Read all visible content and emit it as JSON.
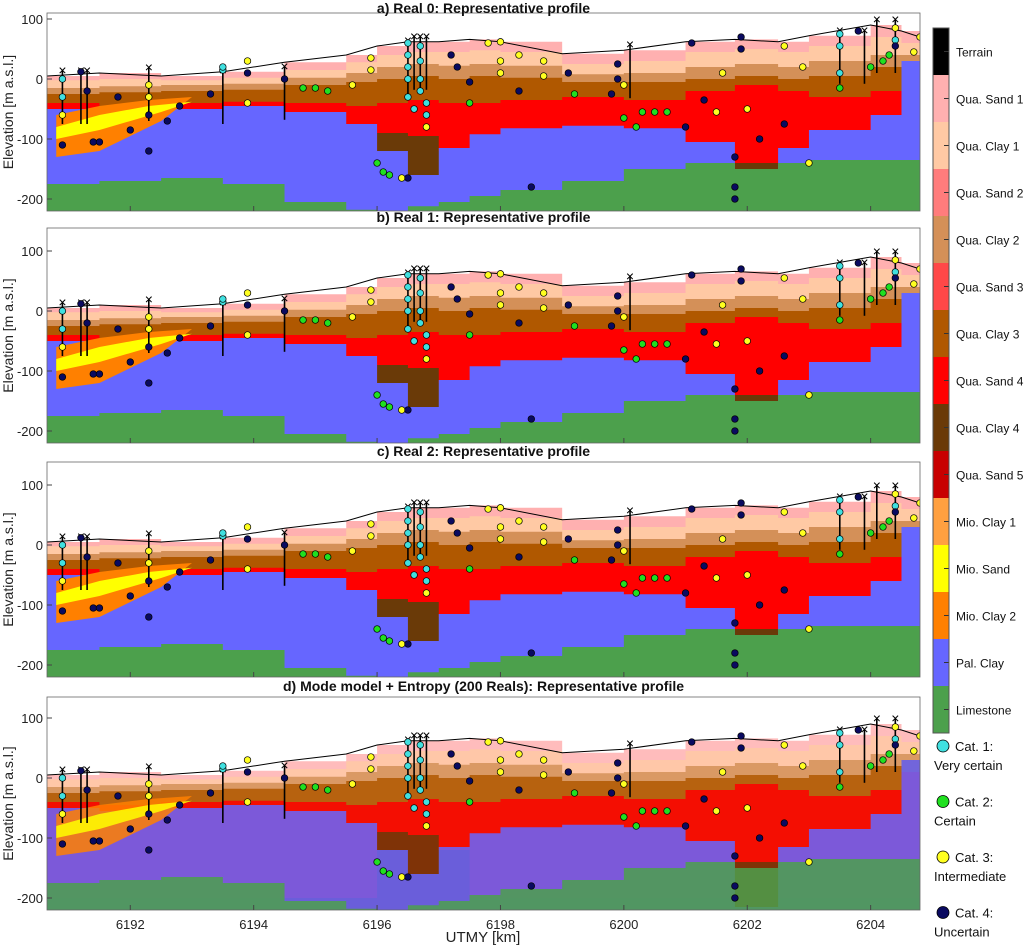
{
  "chart_data": {
    "type": "area",
    "xlabel": "UTMY [km]",
    "ylabel": "Elevation [m a.s.l.]",
    "xlim": [
      6190.65,
      6204.8
    ],
    "ylim": [
      -220,
      100
    ],
    "xticks": [
      6192,
      6194,
      6196,
      6198,
      6200,
      6202,
      6204
    ],
    "yticks": [
      100,
      0,
      -100,
      -200
    ],
    "panels": [
      {
        "title": "a) Real 0: Representative profile"
      },
      {
        "title": "b) Real 1: Representative profile"
      },
      {
        "title": "c) Real 2: Representative profile"
      },
      {
        "title": "d) Mode model + Entropy (200 Reals): Representative profile"
      }
    ],
    "profile_x": [
      6190.65,
      6191.5,
      6192.5,
      6193.5,
      6194.5,
      6195.5,
      6196,
      6196.5,
      6197,
      6197.5,
      6198,
      6199,
      6200,
      6201,
      6201.8,
      6202.5,
      6203,
      6204,
      6204.5,
      6204.8
    ],
    "surface": [
      5,
      10,
      5,
      12,
      28,
      40,
      55,
      62,
      62,
      66,
      62,
      42,
      48,
      62,
      66,
      62,
      72,
      90,
      80,
      70
    ],
    "clay1_top": [
      -2,
      0,
      -2,
      2,
      15,
      28,
      40,
      45,
      45,
      48,
      45,
      25,
      30,
      45,
      50,
      45,
      55,
      70,
      60,
      55
    ],
    "clay2_top": [
      -15,
      -12,
      -10,
      -8,
      2,
      10,
      20,
      25,
      22,
      25,
      22,
      8,
      10,
      20,
      25,
      20,
      30,
      40,
      40,
      40
    ],
    "clay3_top": [
      -25,
      -22,
      -20,
      -18,
      -10,
      -5,
      0,
      5,
      0,
      5,
      2,
      -5,
      -5,
      0,
      5,
      0,
      5,
      20,
      30,
      35
    ],
    "sand4_top": [
      -40,
      -45,
      -40,
      -38,
      -40,
      -45,
      -40,
      -35,
      -40,
      -40,
      -35,
      -30,
      -35,
      -20,
      -10,
      -20,
      -30,
      -20,
      10,
      30
    ],
    "clay4_top": [
      -200,
      -200,
      -200,
      -200,
      -200,
      -200,
      -90,
      -95,
      -120,
      -200,
      -200,
      -200,
      -200,
      -200,
      -140,
      -200,
      -200,
      -200,
      -200,
      -200
    ],
    "pal_top": [
      -50,
      -55,
      -50,
      -45,
      -55,
      -75,
      -120,
      -160,
      -115,
      -92,
      -82,
      -78,
      -82,
      -105,
      -215,
      -115,
      -85,
      -60,
      30,
      50
    ],
    "lime_top": [
      -175,
      -170,
      -165,
      -175,
      -205,
      -218,
      -220,
      -212,
      -205,
      -195,
      -185,
      -170,
      -150,
      -140,
      -150,
      -140,
      -135,
      -135,
      -135,
      -135
    ],
    "mio_lens": {
      "x": [
        6190.8,
        6191.5,
        6192.3,
        6193.0,
        6192.5,
        6191.5,
        6190.8
      ],
      "clay_top": [
        -60,
        -45,
        -35,
        -30,
        -70,
        -120,
        -130
      ],
      "sand_top": [
        -80,
        -60,
        -45,
        -38,
        -55,
        -85,
        -100
      ]
    },
    "layers": [
      {
        "name": "Terrain",
        "color": "#000000"
      },
      {
        "name": "Qua. Sand 1",
        "color": "#ffb0b0"
      },
      {
        "name": "Qua. Clay 1",
        "color": "#ffc9a4"
      },
      {
        "name": "Qua. Sand 2",
        "color": "#ff7c7c"
      },
      {
        "name": "Qua. Clay 2",
        "color": "#d49058"
      },
      {
        "name": "Qua. Sand 3",
        "color": "#ff4848"
      },
      {
        "name": "Qua. Clay 3",
        "color": "#b05800"
      },
      {
        "name": "Qua. Sand 4",
        "color": "#ff0000"
      },
      {
        "name": "Qua. Clay 4",
        "color": "#6a3a08"
      },
      {
        "name": "Qua. Sand 5",
        "color": "#c80000"
      },
      {
        "name": "Mio. Clay 1",
        "color": "#ffa040"
      },
      {
        "name": "Mio. Sand",
        "color": "#ffff00"
      },
      {
        "name": "Mio. Clay 2",
        "color": "#ff8000"
      },
      {
        "name": "Pal. Clay",
        "color": "#6666ff"
      },
      {
        "name": "Limestone",
        "color": "#4ca04c"
      }
    ],
    "categories": [
      {
        "label1": "Cat. 1:",
        "label2": "Very certain",
        "color": "#40e0e0"
      },
      {
        "label1": "Cat. 2:",
        "label2": "Certain",
        "color": "#20e020"
      },
      {
        "label1": "Cat. 3:",
        "label2": "Intermediate",
        "color": "#ffff20"
      },
      {
        "label1": "Cat. 4:",
        "label2": "Uncertain",
        "color": "#0a0a60"
      }
    ],
    "wells": [
      6190.9,
      6191.2,
      6191.3,
      6192.3,
      6193.5,
      6194.5,
      6196.5,
      6196.6,
      6196.7,
      6196.8,
      6200.1,
      6203.5,
      6203.9,
      6204.1,
      6204.4
    ],
    "points": [
      [
        6190.9,
        0,
        1
      ],
      [
        6190.9,
        -30,
        1
      ],
      [
        6190.9,
        -60,
        3
      ],
      [
        6190.9,
        -110,
        4
      ],
      [
        6191.2,
        12,
        4
      ],
      [
        6191.3,
        -20,
        4
      ],
      [
        6191.4,
        -105,
        4
      ],
      [
        6191.5,
        -105,
        4
      ],
      [
        6191.8,
        -30,
        4
      ],
      [
        6192.3,
        -10,
        3
      ],
      [
        6192.3,
        -30,
        3
      ],
      [
        6192.3,
        -60,
        4
      ],
      [
        6192.3,
        -120,
        4
      ],
      [
        6192.0,
        -85,
        4
      ],
      [
        6192.6,
        -70,
        4
      ],
      [
        6192.8,
        -45,
        4
      ],
      [
        6193.3,
        -25,
        4
      ],
      [
        6193.5,
        15,
        1
      ],
      [
        6193.5,
        20,
        1
      ],
      [
        6193.9,
        30,
        3
      ],
      [
        6193.9,
        10,
        4
      ],
      [
        6193.9,
        -40,
        3
      ],
      [
        6194.5,
        0,
        4
      ],
      [
        6194.8,
        -15,
        2
      ],
      [
        6195.0,
        -15,
        2
      ],
      [
        6195.2,
        -20,
        2
      ],
      [
        6195.6,
        -10,
        3
      ],
      [
        6195.9,
        35,
        3
      ],
      [
        6195.9,
        15,
        3
      ],
      [
        6196.0,
        -140,
        2
      ],
      [
        6196.1,
        -155,
        2
      ],
      [
        6196.2,
        -160,
        2
      ],
      [
        6196.4,
        -165,
        3
      ],
      [
        6196.5,
        -165,
        4
      ],
      [
        6196.5,
        60,
        1
      ],
      [
        6196.5,
        40,
        1
      ],
      [
        6196.5,
        20,
        1
      ],
      [
        6196.5,
        0,
        1
      ],
      [
        6196.5,
        -30,
        1
      ],
      [
        6196.6,
        -50,
        1
      ],
      [
        6196.7,
        55,
        1
      ],
      [
        6196.7,
        30,
        1
      ],
      [
        6196.7,
        0,
        1
      ],
      [
        6196.7,
        -20,
        1
      ],
      [
        6196.8,
        -40,
        1
      ],
      [
        6196.8,
        -60,
        1
      ],
      [
        6196.8,
        -80,
        3
      ],
      [
        6197.2,
        40,
        4
      ],
      [
        6197.3,
        20,
        4
      ],
      [
        6197.5,
        -5,
        4
      ],
      [
        6197.5,
        -40,
        2
      ],
      [
        6197.8,
        60,
        3
      ],
      [
        6198.0,
        62,
        3
      ],
      [
        6198.0,
        30,
        3
      ],
      [
        6198.0,
        10,
        3
      ],
      [
        6198.3,
        40,
        3
      ],
      [
        6198.3,
        -20,
        4
      ],
      [
        6198.7,
        30,
        3
      ],
      [
        6198.7,
        5,
        3
      ],
      [
        6198.5,
        -180,
        4
      ],
      [
        6199.1,
        10,
        4
      ],
      [
        6199.2,
        -25,
        2
      ],
      [
        6199.8,
        -25,
        4
      ],
      [
        6199.9,
        25,
        4
      ],
      [
        6199.9,
        0,
        4
      ],
      [
        6200.0,
        -10,
        3
      ],
      [
        6200.0,
        -65,
        2
      ],
      [
        6200.2,
        -80,
        2
      ],
      [
        6200.3,
        -55,
        2
      ],
      [
        6200.5,
        -55,
        2
      ],
      [
        6200.7,
        -55,
        2
      ],
      [
        6201.0,
        -80,
        4
      ],
      [
        6201.1,
        60,
        4
      ],
      [
        6201.3,
        -35,
        4
      ],
      [
        6201.5,
        -55,
        3
      ],
      [
        6201.6,
        10,
        3
      ],
      [
        6201.8,
        -130,
        4
      ],
      [
        6201.8,
        -180,
        4
      ],
      [
        6201.8,
        -200,
        4
      ],
      [
        6201.9,
        70,
        4
      ],
      [
        6201.9,
        50,
        4
      ],
      [
        6202.0,
        -50,
        3
      ],
      [
        6202.2,
        -100,
        4
      ],
      [
        6202.6,
        -75,
        4
      ],
      [
        6202.6,
        55,
        3
      ],
      [
        6202.9,
        20,
        3
      ],
      [
        6203.0,
        -140,
        3
      ],
      [
        6203.5,
        75,
        1
      ],
      [
        6203.5,
        55,
        1
      ],
      [
        6203.5,
        10,
        1
      ],
      [
        6203.5,
        -15,
        2
      ],
      [
        6203.8,
        80,
        4
      ],
      [
        6204.0,
        20,
        2
      ],
      [
        6204.2,
        30,
        2
      ],
      [
        6204.3,
        40,
        2
      ],
      [
        6204.4,
        85,
        3
      ],
      [
        6204.4,
        65,
        1
      ],
      [
        6204.4,
        55,
        4
      ],
      [
        6204.7,
        45,
        3
      ],
      [
        6204.8,
        70,
        3
      ],
      [
        6205.0,
        80,
        3
      ]
    ]
  }
}
